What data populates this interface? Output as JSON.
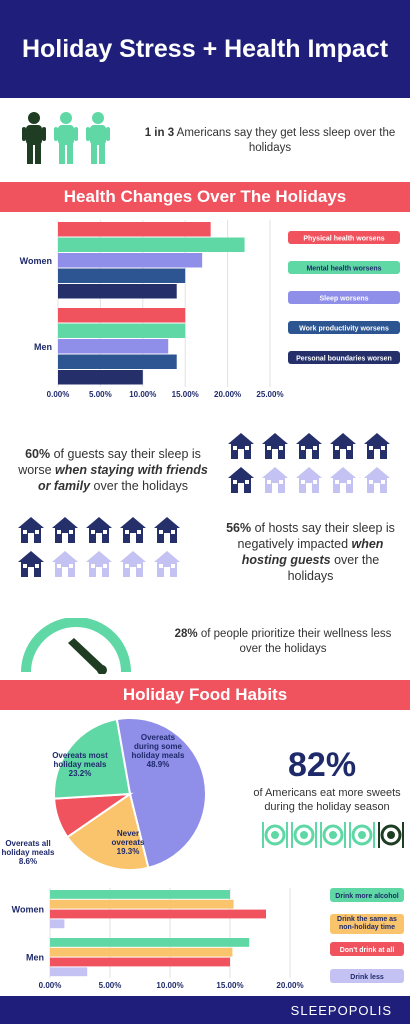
{
  "header": {
    "title": "Holiday Stress + Health Impact"
  },
  "intro": {
    "stat_bold": "1 in 3",
    "stat_text": " Americans say they get less sleep over the holidays"
  },
  "section1": {
    "title": "Health Changes Over The Holidays"
  },
  "section2": {
    "title": "Holiday Food Habits"
  },
  "guests": {
    "pct": "60%",
    "text1": " of guests say their sleep is worse ",
    "emph": "when staying with friends or family",
    "text2": " over the holidays"
  },
  "hosts": {
    "pct": "56%",
    "text1": " of hosts say their sleep is negatively impacted ",
    "emph": "when hosting guests",
    "text2": " over the holidays"
  },
  "wellness": {
    "pct": "28%",
    "text": " of people prioritize their wellness less over the holidays"
  },
  "sweets": {
    "pct": "82%",
    "text": "of Americans eat more sweets during the holiday season"
  },
  "footer": {
    "brand": "SLEEPOPOLIS"
  },
  "colors": {
    "navy": "#1f1e7a",
    "red": "#f0525e",
    "green": "#5fd8a6",
    "lavender": "#8f8ee8",
    "blue": "#2c5591",
    "darknavy": "#25306b",
    "orange": "#f9c46b",
    "lightlav": "#c3c2f2",
    "darkgreen": "#1f3d22"
  },
  "icons": {
    "people": "person-icon",
    "houses": "house-icon",
    "gauge": "gauge-icon",
    "plates": "plate-utensils-icon"
  },
  "chart_data": [
    {
      "type": "bar",
      "orientation": "horizontal",
      "categories": [
        "Women",
        "Men"
      ],
      "series": [
        {
          "name": "Physical health worsens",
          "color": "#f0525e",
          "values": [
            18,
            15
          ]
        },
        {
          "name": "Mental health worsens",
          "color": "#5fd8a6",
          "values": [
            22,
            15
          ]
        },
        {
          "name": "Sleep worsens",
          "color": "#8f8ee8",
          "values": [
            17,
            13
          ]
        },
        {
          "name": "Work productivity worsens",
          "color": "#2c5591",
          "values": [
            15,
            14
          ]
        },
        {
          "name": "Personal boundaries worsen",
          "color": "#25306b",
          "values": [
            14,
            10
          ]
        }
      ],
      "xlim": [
        0,
        25
      ],
      "xticks": [
        "0.00%",
        "5.00%",
        "10.00%",
        "15.00%",
        "20.00%",
        "25.00%"
      ]
    },
    {
      "type": "pie",
      "slices": [
        {
          "label": "Overeats during some holiday meals",
          "pct_label": "48.9%",
          "value": 48.9,
          "color": "#8f8ee8"
        },
        {
          "label": "Never overeats",
          "pct_label": "19.3%",
          "value": 19.3,
          "color": "#f9c46b"
        },
        {
          "label": "Overeats all holiday meals",
          "pct_label": "8.6%",
          "value": 8.6,
          "color": "#f0525e"
        },
        {
          "label": "Overeats most holiday meals",
          "pct_label": "23.2%",
          "value": 23.2,
          "color": "#5fd8a6"
        }
      ]
    },
    {
      "type": "bar",
      "orientation": "horizontal",
      "categories": [
        "Women",
        "Men"
      ],
      "series": [
        {
          "name": "Drink more alcohol",
          "color": "#5fd8a6",
          "values": [
            15,
            16.6
          ]
        },
        {
          "name": "Drink the same as non-holiday time",
          "color": "#f9c46b",
          "values": [
            15.3,
            15.2
          ]
        },
        {
          "name": "Don't drink at all",
          "color": "#f0525e",
          "values": [
            18,
            15
          ]
        },
        {
          "name": "Drink less",
          "color": "#c3c2f2",
          "values": [
            1.2,
            3.1
          ]
        }
      ],
      "xlim": [
        0,
        20
      ],
      "xticks": [
        "0.00%",
        "5.00%",
        "10.00%",
        "15.00%",
        "20.00%"
      ]
    }
  ]
}
